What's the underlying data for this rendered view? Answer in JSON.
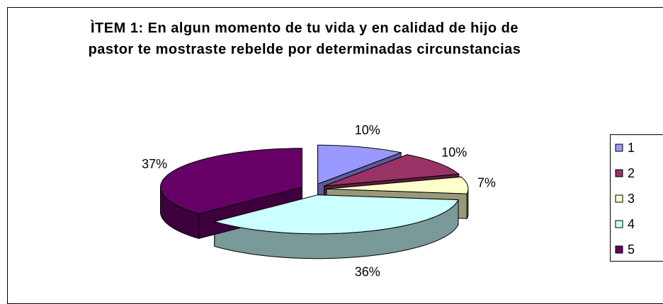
{
  "chart_data": {
    "type": "pie",
    "title": "ÌTEM 1: En algun momento de tu vida y en calidad de hijo de pastor te mostraste rebelde por determinadas circunstancias",
    "categories": [
      "1",
      "2",
      "3",
      "4",
      "5"
    ],
    "values": [
      10,
      10,
      7,
      36,
      37
    ],
    "value_labels": [
      "10%",
      "10%",
      "7%",
      "36%",
      "37%"
    ],
    "colors": [
      "#9999ff",
      "#993366",
      "#ffffcc",
      "#ccffff",
      "#660066"
    ],
    "legend": "right"
  }
}
